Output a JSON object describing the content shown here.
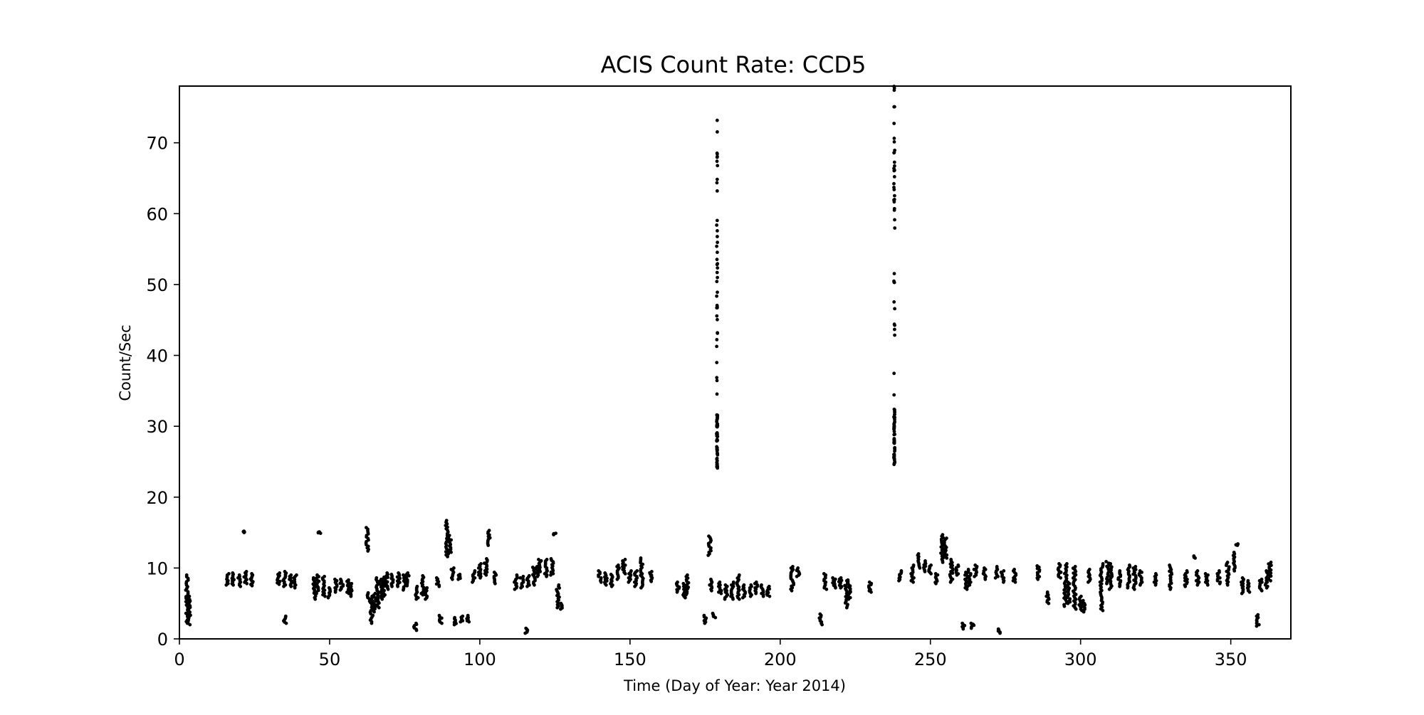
{
  "chart_data": {
    "type": "scatter",
    "title": "ACIS Count Rate: CCD5",
    "xlabel": "Time (Day of Year: Year 2014)",
    "ylabel": "Count/Sec",
    "xlim": [
      0,
      370
    ],
    "ylim": [
      0,
      78
    ],
    "xticks": [
      0,
      50,
      100,
      150,
      200,
      250,
      300,
      350
    ],
    "yticks": [
      0,
      10,
      20,
      30,
      40,
      50,
      60,
      70
    ],
    "grid": false,
    "marker_color": "#000000",
    "clusters": [
      [
        2.5,
        2.2,
        9.0
      ],
      [
        3.2,
        2.0,
        6.0
      ],
      [
        16,
        7.6,
        9.2
      ],
      [
        18,
        7.6,
        9.3
      ],
      [
        20,
        7.4,
        9.0
      ],
      [
        21.5,
        15.0,
        15.2
      ],
      [
        22,
        7.8,
        9.5
      ],
      [
        24,
        7.5,
        9.2
      ],
      [
        33,
        7.7,
        9.3
      ],
      [
        35,
        7.4,
        9.5
      ],
      [
        35.2,
        2.2,
        3.2
      ],
      [
        37,
        7.4,
        9.0
      ],
      [
        38.5,
        7.2,
        9.0
      ],
      [
        45,
        5.6,
        8.6
      ],
      [
        46,
        6.4,
        9.0
      ],
      [
        46.5,
        14.9,
        15.1
      ],
      [
        48,
        6.0,
        8.8
      ],
      [
        50,
        5.8,
        7.2
      ],
      [
        52,
        6.6,
        8.4
      ],
      [
        54,
        6.9,
        8.4
      ],
      [
        56,
        6.4,
        8.3
      ],
      [
        57,
        6.0,
        7.8
      ],
      [
        62.5,
        12.4,
        15.7
      ],
      [
        63,
        5.3,
        6.5
      ],
      [
        64,
        2.2,
        6.0
      ],
      [
        65,
        3.8,
        6.4
      ],
      [
        66,
        4.4,
        8.6
      ],
      [
        67,
        5.6,
        8.4
      ],
      [
        68,
        6.0,
        8.7
      ],
      [
        69,
        7.0,
        9.3
      ],
      [
        71,
        7.4,
        9.1
      ],
      [
        73,
        7.4,
        9.3
      ],
      [
        75,
        6.9,
        9.0
      ],
      [
        76,
        7.5,
        9.3
      ],
      [
        78.5,
        1.2,
        2.2
      ],
      [
        79,
        5.6,
        7.4
      ],
      [
        81,
        6.2,
        8.9
      ],
      [
        82,
        5.6,
        7.2
      ],
      [
        86,
        7.4,
        8.6
      ],
      [
        87,
        2.2,
        3.3
      ],
      [
        89,
        11.6,
        16.7
      ],
      [
        90,
        12.0,
        14.6
      ],
      [
        91,
        8.4,
        10.0
      ],
      [
        92,
        2.0,
        3.0
      ],
      [
        93,
        8.4,
        9.1
      ],
      [
        94,
        2.4,
        3.2
      ],
      [
        96,
        2.4,
        3.3
      ],
      [
        98,
        8.0,
        9.6
      ],
      [
        100,
        8.6,
        10.6
      ],
      [
        102,
        9.0,
        11.3
      ],
      [
        103,
        13.2,
        15.3
      ],
      [
        105,
        7.8,
        9.4
      ],
      [
        112,
        7.0,
        9.0
      ],
      [
        114,
        7.2,
        8.8
      ],
      [
        115.5,
        0.8,
        1.5
      ],
      [
        116,
        7.4,
        8.9
      ],
      [
        118,
        7.6,
        10.1
      ],
      [
        119,
        8.8,
        10.2
      ],
      [
        120,
        9.5,
        11.2
      ],
      [
        122,
        8.8,
        11.2
      ],
      [
        124,
        9.0,
        11.3
      ],
      [
        125,
        14.7,
        14.9
      ],
      [
        126,
        4.4,
        7.6
      ],
      [
        127,
        4.2,
        5.0
      ],
      [
        140,
        8.0,
        9.6
      ],
      [
        142,
        7.6,
        9.3
      ],
      [
        144,
        7.4,
        9.1
      ],
      [
        146,
        8.4,
        10.4
      ],
      [
        148,
        9.2,
        11.2
      ],
      [
        150,
        8.0,
        9.6
      ],
      [
        152,
        7.4,
        9.6
      ],
      [
        154,
        7.2,
        11.4
      ],
      [
        157,
        8.1,
        9.5
      ],
      [
        166,
        6.6,
        8.0
      ],
      [
        168,
        5.8,
        7.8
      ],
      [
        169,
        6.2,
        9.0
      ],
      [
        175,
        2.2,
        3.3
      ],
      [
        176.5,
        11.8,
        14.5
      ],
      [
        177,
        6.8,
        8.4
      ],
      [
        178,
        3.0,
        3.6
      ],
      [
        179,
        24,
        76
      ],
      [
        180,
        6.4,
        8.0
      ],
      [
        182,
        5.6,
        7.6
      ],
      [
        184,
        5.6,
        8.0
      ],
      [
        186,
        5.6,
        9.0
      ],
      [
        188,
        5.8,
        7.6
      ],
      [
        190,
        6.0,
        7.6
      ],
      [
        192,
        6.4,
        8.0
      ],
      [
        194,
        6.0,
        7.6
      ],
      [
        196,
        6.0,
        7.4
      ],
      [
        204,
        6.8,
        10.2
      ],
      [
        206,
        8.8,
        10.0
      ],
      [
        213.5,
        2.0,
        3.5
      ],
      [
        215,
        7.0,
        9.2
      ],
      [
        218,
        7.2,
        8.6
      ],
      [
        220,
        7.2,
        8.6
      ],
      [
        222,
        4.4,
        8.2
      ],
      [
        223,
        5.6,
        8.3
      ],
      [
        230,
        6.6,
        8.0
      ],
      [
        238,
        24.5,
        78
      ],
      [
        240,
        8.2,
        9.6
      ],
      [
        244,
        8.0,
        10.4
      ],
      [
        246,
        10.0,
        12.0
      ],
      [
        248,
        9.5,
        11.0
      ],
      [
        250,
        9.2,
        10.4
      ],
      [
        252,
        7.8,
        9.2
      ],
      [
        254,
        10.8,
        14.7
      ],
      [
        255,
        11.4,
        14.2
      ],
      [
        257,
        8.0,
        11.2
      ],
      [
        259,
        9.0,
        10.4
      ],
      [
        261,
        1.4,
        2.2
      ],
      [
        262,
        7.0,
        9.4
      ],
      [
        263,
        7.6,
        9.8
      ],
      [
        264,
        1.5,
        2.2
      ],
      [
        265,
        8.8,
        10.4
      ],
      [
        268,
        8.4,
        10.0
      ],
      [
        272,
        8.6,
        10.2
      ],
      [
        273,
        0.8,
        1.4
      ],
      [
        274,
        8.0,
        9.6
      ],
      [
        278,
        8.0,
        9.8
      ],
      [
        286,
        8.4,
        10.3
      ],
      [
        289,
        5.0,
        6.6
      ],
      [
        293,
        8.6,
        10.6
      ],
      [
        295,
        4.6,
        10.6
      ],
      [
        296,
        5.0,
        8.0
      ],
      [
        298,
        4.2,
        10.2
      ],
      [
        300,
        4.0,
        6.0
      ],
      [
        301,
        3.8,
        5.4
      ],
      [
        303,
        8.0,
        9.8
      ],
      [
        307,
        4.0,
        10.6
      ],
      [
        309,
        7.8,
        10.9
      ],
      [
        310,
        7.0,
        10.6
      ],
      [
        313,
        7.4,
        9.6
      ],
      [
        316,
        7.2,
        10.4
      ],
      [
        318,
        7.0,
        10.2
      ],
      [
        320,
        7.6,
        9.6
      ],
      [
        325,
        7.6,
        9.2
      ],
      [
        330,
        7.0,
        10.4
      ],
      [
        335,
        7.4,
        9.6
      ],
      [
        338,
        11.4,
        11.7
      ],
      [
        339,
        7.6,
        9.6
      ],
      [
        342,
        7.6,
        9.2
      ],
      [
        346,
        7.8,
        9.6
      ],
      [
        349,
        7.6,
        10.8
      ],
      [
        351,
        9.6,
        12.2
      ],
      [
        352,
        13.2,
        13.4
      ],
      [
        354,
        6.4,
        8.6
      ],
      [
        356,
        6.6,
        8.2
      ],
      [
        359,
        1.8,
        3.4
      ],
      [
        360,
        6.8,
        8.4
      ],
      [
        362,
        7.2,
        9.6
      ],
      [
        363,
        8.2,
        10.8
      ]
    ]
  }
}
